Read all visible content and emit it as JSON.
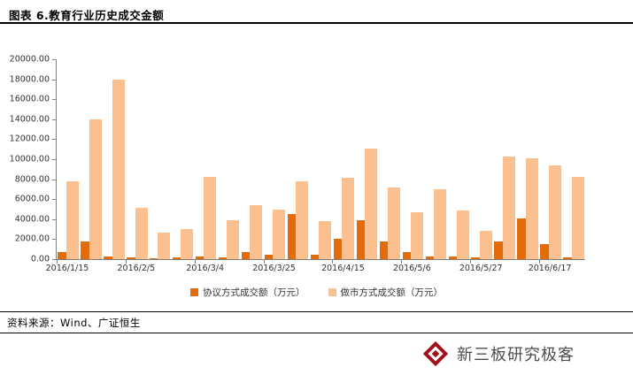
{
  "header": {
    "title": "图表 6.教育行业历史成交金额"
  },
  "chart_data": {
    "type": "bar",
    "title": "图表 6.教育行业历史成交金额",
    "xlabel": "",
    "ylabel": "",
    "ylim": [
      0,
      20000
    ],
    "ytick_step": 2000,
    "grid": false,
    "legend_position": "bottom",
    "categories": [
      "2016/1/15",
      "",
      "",
      "2016/2/5",
      "",
      "",
      "2016/3/4",
      "",
      "",
      "2016/3/25",
      "",
      "",
      "2016/4/15",
      "",
      "",
      "2016/5/6",
      "",
      "",
      "2016/5/27",
      "",
      "",
      "2016/6/17",
      ""
    ],
    "series": [
      {
        "name": "协议方式成交额（万元）",
        "color": "#E36C09",
        "values": [
          700,
          1800,
          250,
          150,
          100,
          150,
          250,
          150,
          700,
          450,
          4500,
          450,
          2000,
          3900,
          1800,
          750,
          250,
          250,
          150,
          1800,
          4100,
          1500,
          150
        ]
      },
      {
        "name": "做市方式成交额（万元）",
        "color": "#FAC090",
        "values": [
          7800,
          14000,
          18000,
          5100,
          2700,
          3000,
          8200,
          3900,
          5400,
          5000,
          7800,
          3800,
          8100,
          11100,
          7200,
          4700,
          7000,
          4900,
          2800,
          10300,
          10100,
          9400,
          8200
        ]
      }
    ]
  },
  "source": {
    "label": "资料来源：Wind、广证恒生"
  },
  "footer": {
    "brand": "新三板研究极客"
  },
  "colors": {
    "axis": "#7f7f7f",
    "title_rule": "#000000",
    "logo_red": "#A31418"
  }
}
